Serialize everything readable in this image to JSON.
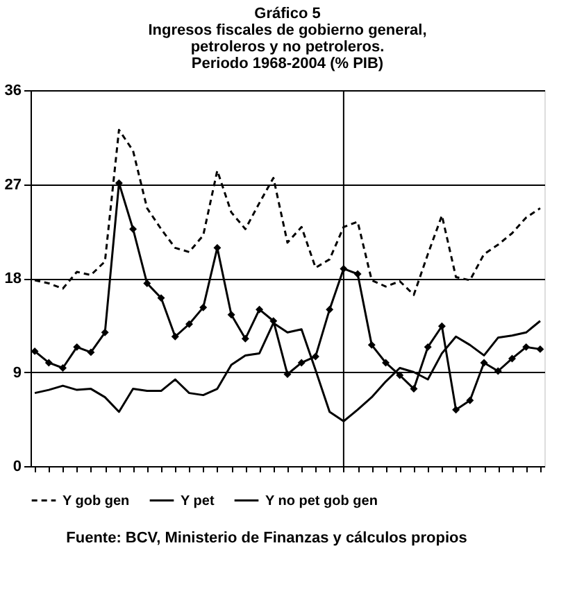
{
  "chart_data": {
    "type": "line",
    "title": "Gráfico 5\nIngresos fiscales de gobierno general,\npetroleros y no petroleros.\nPeriodo 1968-2004  (% PIB)",
    "categories": [
      null,
      null,
      null,
      null,
      null,
      null,
      null,
      null,
      null,
      null,
      null,
      null,
      null,
      null,
      null,
      null,
      null,
      null,
      null,
      null,
      null,
      null,
      null,
      null,
      null,
      null,
      null,
      null,
      null,
      null,
      null,
      null,
      null,
      null,
      null,
      null,
      null
    ],
    "series": [
      {
        "name": "Y gob gen",
        "color": "#000000",
        "line_style": "dashed",
        "marker": "none",
        "values": [
          17.8,
          17.5,
          17.0,
          18.6,
          18.3,
          19.6,
          32.2,
          30.2,
          24.7,
          22.7,
          20.9,
          20.5,
          22.1,
          28.3,
          24.3,
          22.7,
          25.2,
          27.6,
          21.4,
          22.9,
          19.0,
          19.8,
          22.9,
          23.4,
          17.8,
          17.2,
          17.7,
          16.4,
          20.3,
          24.0,
          18.1,
          17.8,
          20.3,
          21.2,
          22.3,
          23.8,
          24.7
        ]
      },
      {
        "name": "Y pet",
        "color": "#000000",
        "line_style": "solid",
        "marker": "diamond",
        "values": [
          11.0,
          9.9,
          9.4,
          11.4,
          10.9,
          12.8,
          27.1,
          22.7,
          17.5,
          16.1,
          12.4,
          13.6,
          15.2,
          20.9,
          14.5,
          12.2,
          15.0,
          13.9,
          8.8,
          9.9,
          10.5,
          15.0,
          18.9,
          18.4,
          11.6,
          9.9,
          8.7,
          7.4,
          11.4,
          13.4,
          5.4,
          6.3,
          9.9,
          9.1,
          10.3,
          11.4,
          11.2
        ]
      },
      {
        "name": "Y no pet gob gen",
        "color": "#000000",
        "line_style": "solid",
        "marker": "none",
        "values": [
          7.0,
          7.3,
          7.7,
          7.3,
          7.4,
          6.6,
          5.2,
          7.4,
          7.2,
          7.2,
          8.3,
          7.0,
          6.8,
          7.4,
          9.7,
          10.6,
          10.8,
          13.7,
          12.8,
          13.1,
          9.2,
          5.2,
          4.3,
          5.4,
          6.6,
          8.1,
          9.4,
          9.0,
          8.3,
          10.8,
          12.4,
          11.6,
          10.6,
          12.3,
          12.5,
          12.8,
          13.9
        ]
      }
    ],
    "ylim": [
      0,
      36
    ],
    "yticks": [
      0,
      9,
      18,
      27,
      36
    ],
    "grid": "y",
    "tick_labels": "y",
    "legend": "bottom",
    "annotations": [
      "Fuente: BCV, Ministerio de Finanzas y cálculos propios"
    ]
  }
}
